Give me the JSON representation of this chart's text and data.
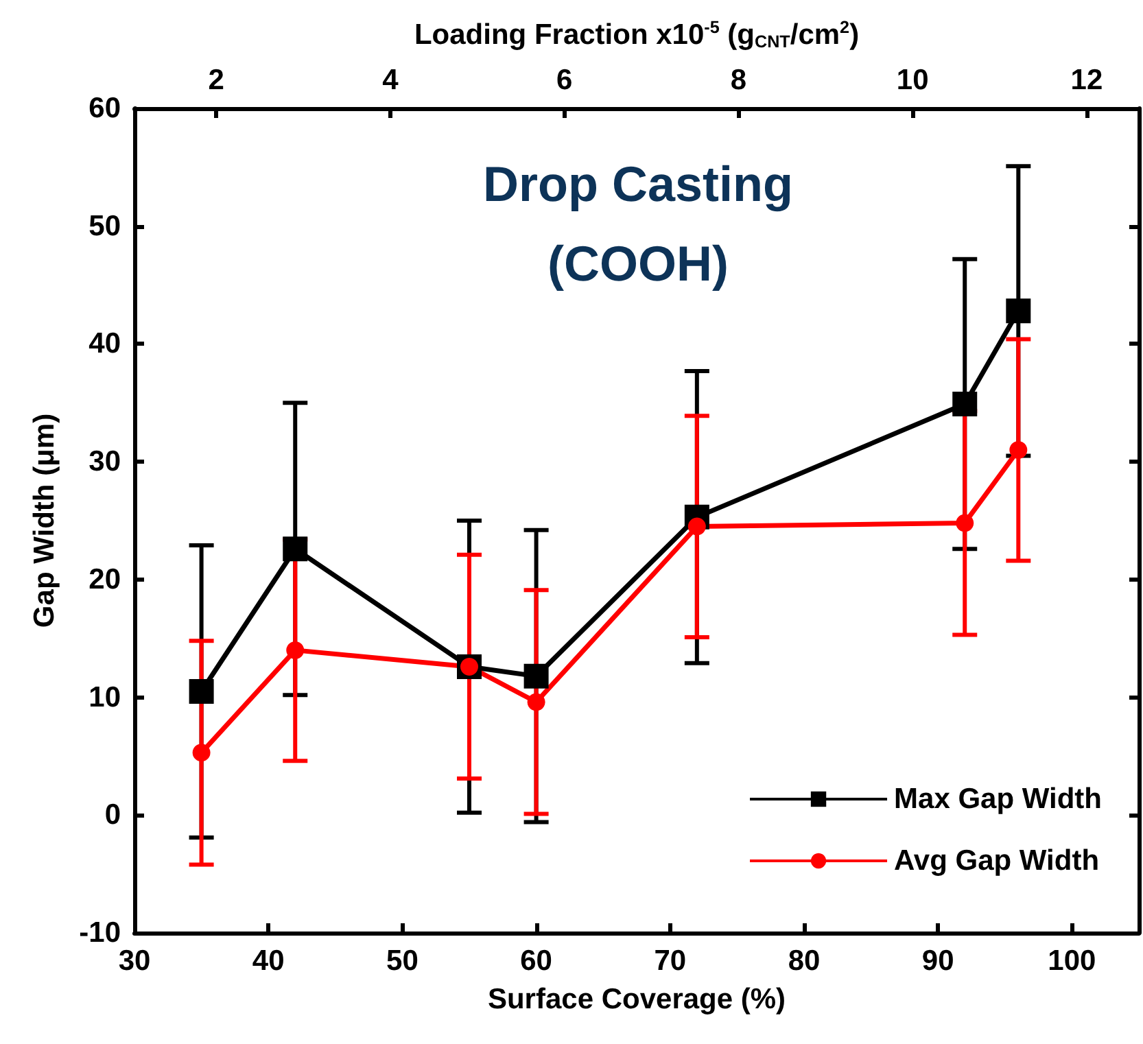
{
  "chart_data": {
    "type": "line",
    "title": "Drop Casting\n(COOH)",
    "xlabel": "Surface Coverage (%)",
    "ylabel": "Gap Width (μm)",
    "x2label": "Loading Fraction x10$^{-5}$ (g$_{CNT}$/cm$^{2}$)",
    "x": [
      35,
      42,
      55,
      60,
      72,
      92,
      96
    ],
    "series": [
      {
        "name": "Max Gap Width",
        "color": "#000000",
        "marker": "square",
        "values": [
          10.5,
          22.6,
          12.6,
          11.8,
          25.3,
          34.9,
          42.8
        ],
        "errors": [
          12.4,
          12.4,
          12.4,
          12.4,
          12.4,
          12.3,
          12.3
        ]
      },
      {
        "name": "Avg Gap Width",
        "color": "#ff0000",
        "marker": "circle",
        "values": [
          5.3,
          14.0,
          12.6,
          9.6,
          24.5,
          24.8,
          31.0
        ],
        "errors": [
          9.5,
          9.4,
          9.5,
          9.5,
          9.4,
          9.5,
          9.4
        ]
      }
    ],
    "xlim": [
      30,
      105
    ],
    "xticks": [
      30,
      40,
      50,
      60,
      70,
      80,
      90,
      100
    ],
    "x2lim": [
      1.06,
      12.6
    ],
    "x2ticks": [
      2,
      4,
      6,
      8,
      10,
      12
    ],
    "ylim": [
      -10,
      60
    ],
    "yticks": [
      -10,
      0,
      10,
      20,
      30,
      40,
      50,
      60
    ],
    "grid": false,
    "legend": "bottom right",
    "line_style": "solid"
  }
}
